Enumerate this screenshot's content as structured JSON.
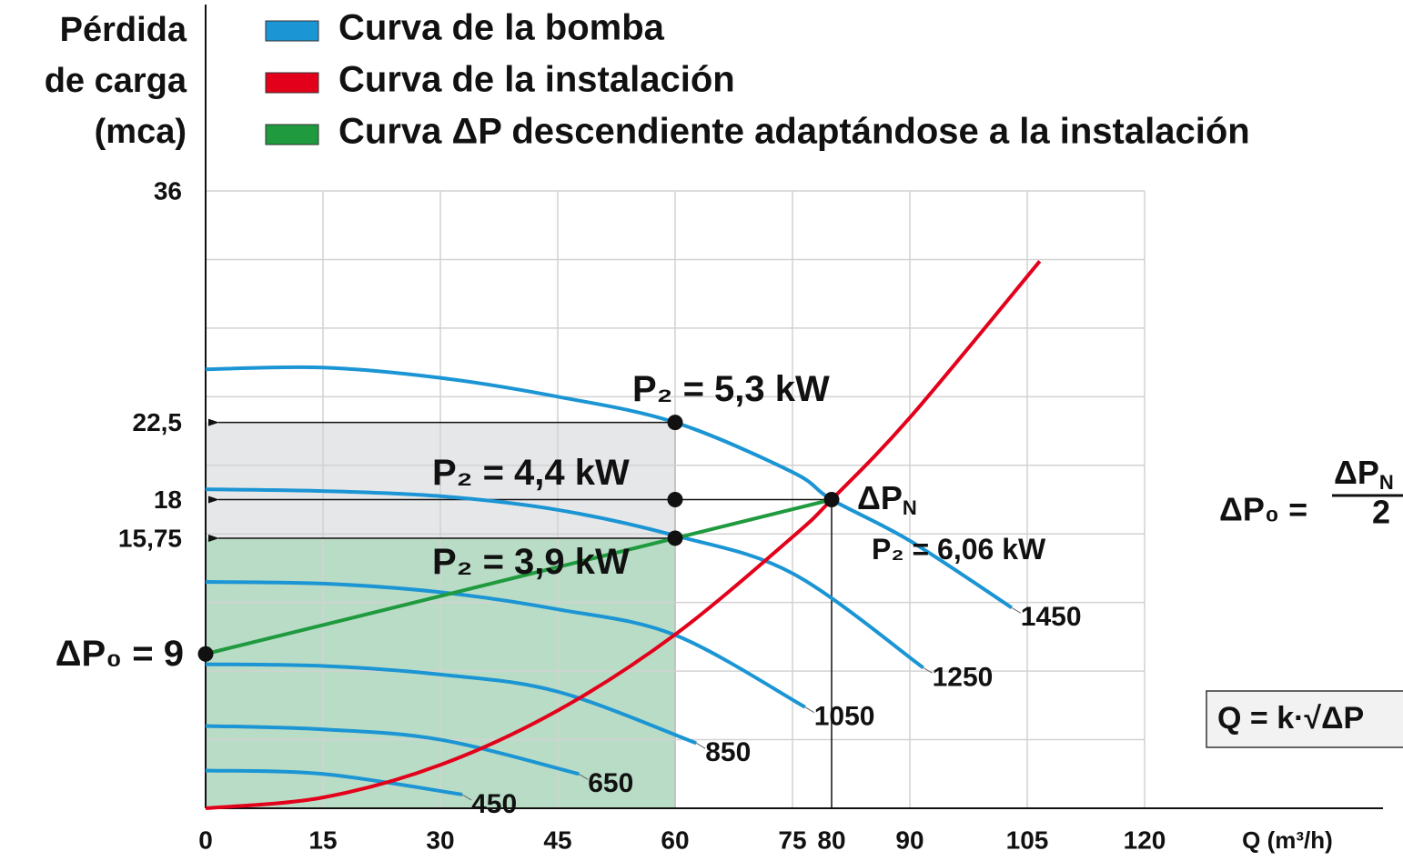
{
  "chart_data": {
    "type": "line",
    "y_label_lines": [
      "Pérdida",
      "de carga",
      "(mca)"
    ],
    "x_label": "Q (m³/h)",
    "legend": [
      {
        "name": "Curva de la bomba",
        "color": "#1b95d3"
      },
      {
        "name": "Curva de la instalación",
        "color": "#e3001b"
      },
      {
        "name": "Curva ΔP descendiente adaptándose a la instalación",
        "color": "#1f9a3e"
      }
    ],
    "xlim": [
      0,
      120
    ],
    "ylim": [
      0,
      36
    ],
    "xticks": [
      0,
      15,
      30,
      45,
      60,
      75,
      80,
      90,
      105,
      120
    ],
    "yticks": [
      36,
      {
        "value": 22.5,
        "label": "22,5"
      },
      18,
      {
        "value": 15.75,
        "label": "15,75"
      },
      {
        "value": 9,
        "label": "ΔP₀ = 9"
      }
    ],
    "xgrid": [
      0,
      15,
      30,
      45,
      60,
      75,
      90,
      105,
      120
    ],
    "ygrid": [
      0,
      4,
      8,
      12,
      16,
      20,
      24,
      28,
      32,
      36
    ],
    "grid": true,
    "regions": [
      {
        "x": [
          0,
          60
        ],
        "y": [
          15.75,
          22.5
        ],
        "color": "#e6e7e9"
      },
      {
        "x": [
          0,
          60
        ],
        "y": [
          0,
          15.75
        ],
        "color": "#b9dcc6"
      }
    ],
    "series": [
      {
        "name": "1450",
        "color": "#1b95d3",
        "x": [
          0,
          15,
          30,
          45,
          60,
          75,
          80,
          90,
          103
        ],
        "values": [
          25.6,
          25.7,
          25.1,
          24.0,
          22.5,
          19.6,
          18,
          15.6,
          11.7
        ]
      },
      {
        "name": "1250",
        "color": "#1b95d3",
        "x": [
          0,
          15,
          30,
          45,
          60,
          75,
          91.7
        ],
        "values": [
          18.6,
          18.5,
          18.2,
          17.4,
          15.9,
          13.7,
          8.2
        ]
      },
      {
        "name": "1050",
        "color": "#1b95d3",
        "x": [
          0,
          15,
          30,
          45,
          60,
          76.6
        ],
        "values": [
          13.2,
          13.1,
          12.6,
          11.6,
          10.1,
          5.9
        ]
      },
      {
        "name": "850",
        "color": "#1b95d3",
        "x": [
          0,
          15,
          30,
          45,
          62.7
        ],
        "values": [
          8.4,
          8.3,
          7.8,
          6.8,
          3.8
        ]
      },
      {
        "name": "650",
        "color": "#1b95d3",
        "x": [
          0,
          15,
          30,
          47.7
        ],
        "values": [
          4.8,
          4.6,
          4.0,
          2.0
        ]
      },
      {
        "name": "450",
        "color": "#1b95d3",
        "x": [
          0,
          15,
          32.8
        ],
        "values": [
          2.2,
          2.0,
          0.8
        ]
      },
      {
        "color": "#e3001b",
        "x": [
          0,
          15,
          30,
          45,
          60,
          75,
          80,
          90,
          106.6
        ],
        "values": [
          0,
          0.63,
          2.53,
          5.7,
          10.13,
          15.82,
          18,
          22.78,
          31.9
        ]
      },
      {
        "color": "#1f9a3e",
        "x": [
          0,
          80
        ],
        "values": [
          9,
          18
        ]
      }
    ],
    "arrows": [
      {
        "from_x": 60,
        "y": 22.5
      },
      {
        "from_x": 80,
        "y": 18
      },
      {
        "from_x": 60,
        "y": 15.75
      }
    ],
    "drop_lines": [
      {
        "x": 80,
        "y": 18
      }
    ],
    "points": [
      {
        "x": 60,
        "y": 22.5
      },
      {
        "x": 60,
        "y": 18
      },
      {
        "x": 60,
        "y": 15.75
      },
      {
        "x": 80,
        "y": 18
      },
      {
        "x": 0,
        "y": 9
      }
    ],
    "annotations": [
      {
        "text": "P₂ = 5,3 kW"
      },
      {
        "text": "P₂ = 4,4 kW"
      },
      {
        "text": "P₂ = 3,9 kW"
      },
      {
        "text": "ΔP",
        "subscript": "N"
      },
      {
        "text": "P₂ = 6,06 kW"
      }
    ],
    "formula": {
      "left": "ΔP₀ =",
      "numerator": "ΔP",
      "numerator_subscript": "N",
      "denominator": "2"
    },
    "boxed_formula": "Q = k·√ΔP"
  }
}
